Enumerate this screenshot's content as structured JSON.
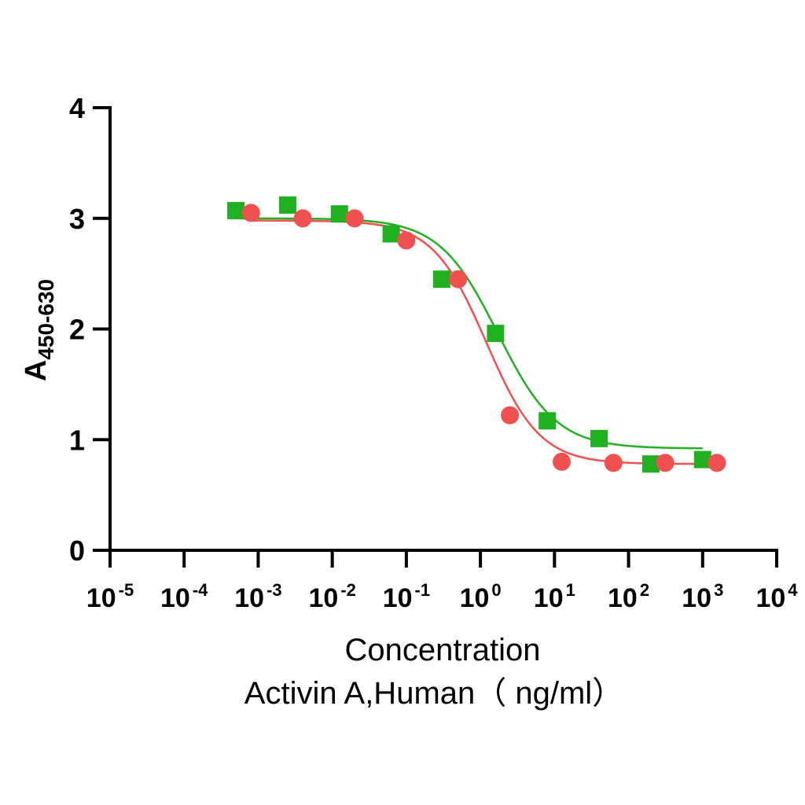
{
  "chart_data": {
    "type": "scatter",
    "x_scale": "log",
    "xlim": [
      1e-05,
      10000
    ],
    "ylim": [
      0,
      4
    ],
    "grid": false,
    "legend": "none",
    "ylabel": {
      "main": "A",
      "sub": "450-630"
    },
    "xlabel": {
      "line1": "Concentration",
      "line2": "Activin A,Human（ ng/ml）"
    },
    "x_ticks": [
      {
        "base": "10",
        "exp": "-5",
        "value": 1e-05
      },
      {
        "base": "10",
        "exp": "-4",
        "value": 0.0001
      },
      {
        "base": "10",
        "exp": "-3",
        "value": 0.001
      },
      {
        "base": "10",
        "exp": "-2",
        "value": 0.01
      },
      {
        "base": "10",
        "exp": "-1",
        "value": 0.1
      },
      {
        "base": "10",
        "exp": "0",
        "value": 1
      },
      {
        "base": "10",
        "exp": "1",
        "value": 10
      },
      {
        "base": "10",
        "exp": "2",
        "value": 100
      },
      {
        "base": "10",
        "exp": "3",
        "value": 1000
      },
      {
        "base": "10",
        "exp": "4",
        "value": 10000
      }
    ],
    "y_ticks": [
      {
        "label": "0",
        "value": 0
      },
      {
        "label": "1",
        "value": 1
      },
      {
        "label": "2",
        "value": 2
      },
      {
        "label": "3",
        "value": 3
      },
      {
        "label": "4",
        "value": 4
      }
    ],
    "series": [
      {
        "marker": "square",
        "color": "#1fb11f",
        "x": [
          0.0005,
          0.0025,
          0.0125,
          0.0625,
          0.3,
          1.6,
          8,
          40,
          200,
          1000
        ],
        "y": [
          3.07,
          3.12,
          3.04,
          2.86,
          2.45,
          1.96,
          1.17,
          1.01,
          0.78,
          0.82
        ],
        "fit": {
          "top": 3.0,
          "bottom": 0.92,
          "ec50": 1.72,
          "hill": 1.1,
          "x_range": [
            0.0005,
            1000
          ]
        }
      },
      {
        "marker": "circle",
        "color": "#f05050",
        "x": [
          0.0008,
          0.004,
          0.02,
          0.1,
          0.5,
          2.5,
          12.5,
          62.5,
          312,
          1560
        ],
        "y": [
          3.05,
          3.0,
          3.0,
          2.8,
          2.45,
          1.22,
          0.8,
          0.79,
          0.79,
          0.79
        ],
        "fit": {
          "top": 2.98,
          "bottom": 0.78,
          "ec50": 1.2,
          "hill": 1.2,
          "x_range": [
            0.0008,
            1560
          ]
        }
      }
    ]
  }
}
